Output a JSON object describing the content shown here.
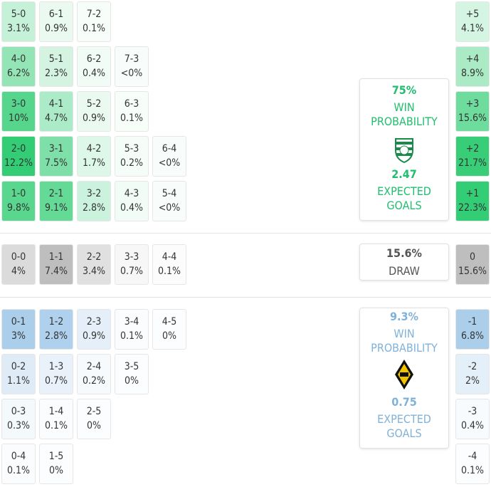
{
  "home": {
    "color": "#2ecc71",
    "text_color": "#1fbf6e",
    "rows": [
      [
        [
          "5-0",
          "3.1%"
        ],
        [
          "6-1",
          "0.9%"
        ],
        [
          "7-2",
          "0.1%"
        ]
      ],
      [
        [
          "4-0",
          "6.2%"
        ],
        [
          "5-1",
          "2.3%"
        ],
        [
          "6-2",
          "0.4%"
        ],
        [
          "7-3",
          "<0%"
        ]
      ],
      [
        [
          "3-0",
          "10%"
        ],
        [
          "4-1",
          "4.7%"
        ],
        [
          "5-2",
          "0.9%"
        ],
        [
          "6-3",
          "0.1%"
        ]
      ],
      [
        [
          "2-0",
          "12.2%"
        ],
        [
          "3-1",
          "7.5%"
        ],
        [
          "4-2",
          "1.7%"
        ],
        [
          "5-3",
          "0.2%"
        ],
        [
          "6-4",
          "<0%"
        ]
      ],
      [
        [
          "1-0",
          "9.8%"
        ],
        [
          "2-1",
          "9.1%"
        ],
        [
          "3-2",
          "2.8%"
        ],
        [
          "4-3",
          "0.4%"
        ],
        [
          "5-4",
          "<0%"
        ]
      ]
    ],
    "margins": [
      [
        "+5",
        "4.1%"
      ],
      [
        "+4",
        "8.9%"
      ],
      [
        "+3",
        "15.6%"
      ],
      [
        "+2",
        "21.7%"
      ],
      [
        "+1",
        "22.3%"
      ]
    ],
    "summary": {
      "win": "75%",
      "win_label": "WIN PROBABILITY",
      "xg": "2.47",
      "xg_label": "EXPECTED GOALS"
    }
  },
  "draw": {
    "color": "#bdbdbd",
    "text_color": "#555555",
    "rows": [
      [
        [
          "0-0",
          "4%"
        ],
        [
          "1-1",
          "7.4%"
        ],
        [
          "2-2",
          "3.4%"
        ],
        [
          "3-3",
          "0.7%"
        ],
        [
          "4-4",
          "0.1%"
        ]
      ]
    ],
    "margins": [
      [
        "0",
        "15.6%"
      ]
    ],
    "summary": {
      "win": "15.6%",
      "win_label": "DRAW"
    }
  },
  "away": {
    "color": "#a9cdeb",
    "text_color": "#7fb2da",
    "rows": [
      [
        [
          "0-1",
          "3%"
        ],
        [
          "1-2",
          "2.8%"
        ],
        [
          "2-3",
          "0.9%"
        ],
        [
          "3-4",
          "0.1%"
        ],
        [
          "4-5",
          "0%"
        ]
      ],
      [
        [
          "0-2",
          "1.1%"
        ],
        [
          "1-3",
          "0.7%"
        ],
        [
          "2-4",
          "0.2%"
        ],
        [
          "3-5",
          "0%"
        ]
      ],
      [
        [
          "0-3",
          "0.3%"
        ],
        [
          "1-4",
          "0.1%"
        ],
        [
          "2-5",
          "0%"
        ]
      ],
      [
        [
          "0-4",
          "0.1%"
        ],
        [
          "1-5",
          "0%"
        ]
      ]
    ],
    "margins": [
      [
        "-1",
        "6.8%"
      ],
      [
        "-2",
        "2%"
      ],
      [
        "-3",
        "0.4%"
      ],
      [
        "-4",
        "0.1%"
      ]
    ],
    "summary": {
      "win": "9.3%",
      "win_label": "WIN PROBABILITY",
      "xg": "0.75",
      "xg_label": "EXPECTED GOALS"
    }
  }
}
